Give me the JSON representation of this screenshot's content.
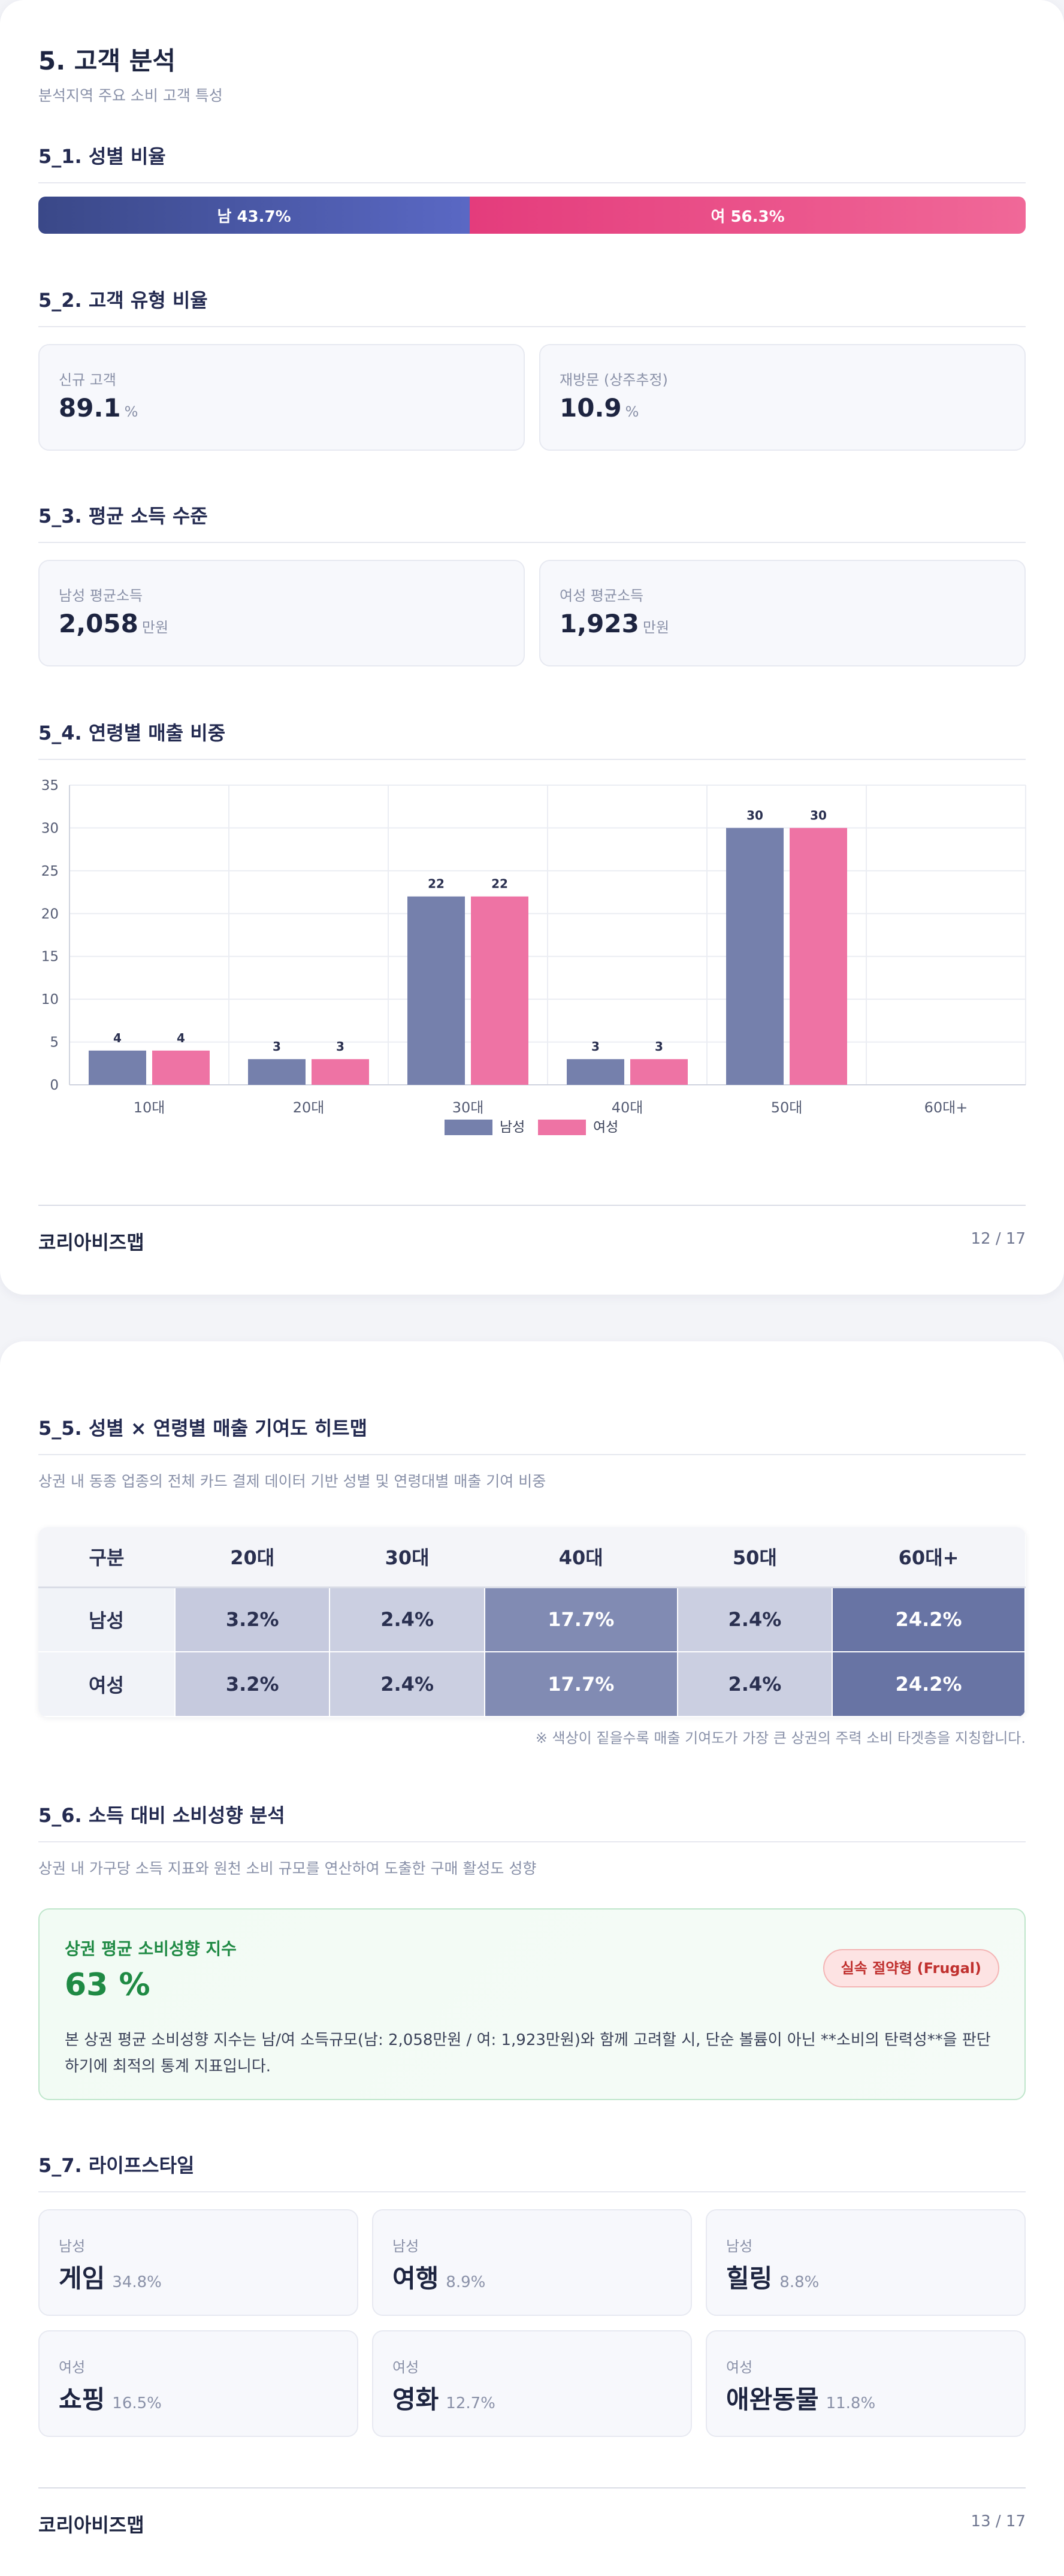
{
  "page1": {
    "title": "5. 고객 분석",
    "subtitle": "분석지역 주요 소비 고객 특성",
    "gender": {
      "title": "5_1. 성별 비율",
      "male_label": "남 43.7%",
      "female_label": "여 56.3%",
      "male_pct": 43.7,
      "female_pct": 56.3,
      "male_color": "#4a5aa8",
      "female_color": "#e8447f"
    },
    "customer_type": {
      "title": "5_2. 고객 유형 비율",
      "new_label": "신규 고객",
      "new_value": "89.1",
      "return_label": "재방문 (상주추정)",
      "return_value": "10.9",
      "unit": "%"
    },
    "income": {
      "title": "5_3. 평균 소득 수준",
      "male_label": "남성 평균소득",
      "male_value": "2,058",
      "female_label": "여성 평균소득",
      "female_value": "1,923",
      "unit": "만원"
    },
    "age_sales": {
      "title": "5_4. 연령별 매출 비중"
    },
    "footer": {
      "brand": "코리아비즈맵",
      "page": "12 / 17"
    }
  },
  "chart_data": {
    "type": "bar",
    "categories": [
      "10대",
      "20대",
      "30대",
      "40대",
      "50대",
      "60대+"
    ],
    "series": [
      {
        "name": "남성",
        "values": [
          4,
          3,
          22,
          3,
          30,
          0
        ],
        "color": "#7580ac"
      },
      {
        "name": "여성",
        "values": [
          4,
          3,
          22,
          3,
          30,
          0
        ],
        "color": "#ee73a4"
      }
    ],
    "data_labels": [
      [
        "4",
        "3",
        "22",
        "3",
        "30",
        ""
      ],
      [
        "4",
        "3",
        "22",
        "3",
        "30",
        ""
      ]
    ],
    "ylim": [
      0,
      35
    ],
    "yticks": [
      "0",
      "5",
      "10",
      "15",
      "20",
      "25",
      "30",
      "35"
    ],
    "grid": true,
    "legend": "bottom-center"
  },
  "page2": {
    "heatmap": {
      "title": "5_5. 성별 × 연령별 매출 기여도 히트맵",
      "subtitle": "상권 내 동종 업종의 전체 카드 결제 데이터 기반 성별 및 연령대별 매출 기여 비중",
      "headers": [
        "구분",
        "20대",
        "30대",
        "40대",
        "50대",
        "60대+"
      ],
      "rows": [
        {
          "label": "남성",
          "cells": [
            "3.2%",
            "2.4%",
            "17.7%",
            "2.4%",
            "24.2%"
          ]
        },
        {
          "label": "여성",
          "cells": [
            "3.2%",
            "2.4%",
            "17.7%",
            "2.4%",
            "24.2%"
          ]
        }
      ],
      "note": "※ 색상이 짙을수록 매출 기여도가 가장 큰 상권의 주력 소비 타겟층을 지칭합니다."
    },
    "spending": {
      "title": "5_6. 소득 대비 소비성향 분석",
      "subtitle": "상권 내 가구당 소득 지표와 원천 소비 규모를 연산하여 도출한 구매 활성도 성향",
      "box_title": "상권 평균 소비성향 지수",
      "index_value": "63 %",
      "badge": "실속 절약형 (Frugal)",
      "description": "본 상권 평균 소비성향 지수는 남/여 소득규모(남: 2,058만원 / 여: 1,923만원)와 함께 고려할 시, 단순 볼륨이 아닌 **소비의 탄력성**을 판단하기에 최적의 통계 지표입니다."
    },
    "lifestyle": {
      "title": "5_7. 라이프스타일",
      "items": [
        {
          "gender": "남성",
          "name": "게임",
          "pct": "34.8%"
        },
        {
          "gender": "남성",
          "name": "여행",
          "pct": "8.9%"
        },
        {
          "gender": "남성",
          "name": "힐링",
          "pct": "8.8%"
        },
        {
          "gender": "여성",
          "name": "쇼핑",
          "pct": "16.5%"
        },
        {
          "gender": "여성",
          "name": "영화",
          "pct": "12.7%"
        },
        {
          "gender": "여성",
          "name": "애완동물",
          "pct": "11.8%"
        }
      ]
    },
    "footer": {
      "brand": "코리아비즈맵",
      "page": "13 / 17"
    }
  }
}
